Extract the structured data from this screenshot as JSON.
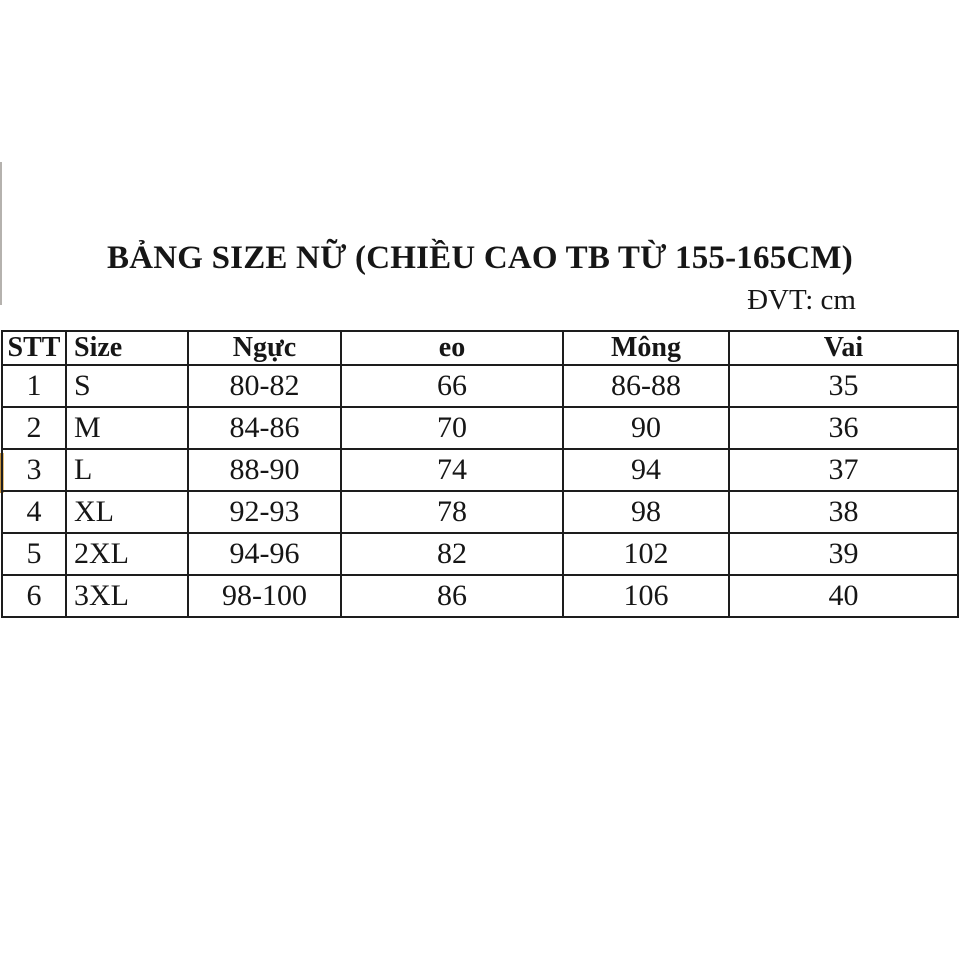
{
  "page": {
    "title": "BẢNG SIZE NỮ (CHIỀU CAO TB TỪ 155-165CM)",
    "unit_label": "ĐVT: cm"
  },
  "size_table": {
    "columns": [
      "STT",
      "Size",
      "Ngực",
      "eo",
      "Mông",
      "Vai"
    ],
    "rows": [
      [
        "1",
        "S",
        "80-82",
        "66",
        "86-88",
        "35"
      ],
      [
        "2",
        "M",
        "84-86",
        "70",
        "90",
        "36"
      ],
      [
        "3",
        "L",
        "88-90",
        "74",
        "94",
        "37"
      ],
      [
        "4",
        "XL",
        "92-93",
        "78",
        "98",
        "38"
      ],
      [
        "5",
        "2XL",
        "94-96",
        "82",
        "102",
        "39"
      ],
      [
        "6",
        "3XL",
        "98-100",
        "86",
        "106",
        "40"
      ]
    ]
  },
  "colors": {
    "border": "#1d1d1d",
    "text": "#161616",
    "background": "#ffffff",
    "artifact_gray": "#b5b2ae",
    "artifact_yellow": "#d9a455"
  }
}
